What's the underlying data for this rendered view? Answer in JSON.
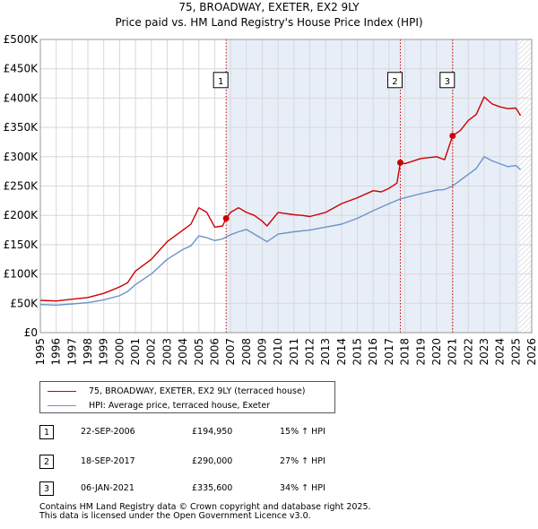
{
  "chart_data": {
    "type": "line",
    "title": "75, BROADWAY, EXETER, EX2 9LY",
    "subtitle": "Price paid vs. HM Land Registry's House Price Index (HPI)",
    "xlabel": "",
    "ylabel": "",
    "xlim": [
      1995,
      2026
    ],
    "ylim": [
      0,
      500000
    ],
    "x_ticks": [
      1995,
      1996,
      1997,
      1998,
      1999,
      2000,
      2001,
      2002,
      2003,
      2004,
      2005,
      2006,
      2007,
      2008,
      2009,
      2010,
      2011,
      2012,
      2013,
      2014,
      2015,
      2016,
      2017,
      2018,
      2019,
      2020,
      2021,
      2022,
      2023,
      2024,
      2025,
      2026
    ],
    "y_ticks": [
      {
        "value": 0,
        "label": "£0"
      },
      {
        "value": 50000,
        "label": "£50K"
      },
      {
        "value": 100000,
        "label": "£100K"
      },
      {
        "value": 150000,
        "label": "£150K"
      },
      {
        "value": 200000,
        "label": "£200K"
      },
      {
        "value": 250000,
        "label": "£250K"
      },
      {
        "value": 300000,
        "label": "£300K"
      },
      {
        "value": 350000,
        "label": "£350K"
      },
      {
        "value": 400000,
        "label": "£400K"
      },
      {
        "value": 450000,
        "label": "£450K"
      },
      {
        "value": 500000,
        "label": "£500K"
      }
    ],
    "grid": true,
    "series": [
      {
        "name": "75, BROADWAY, EXETER, EX2 9LY (terraced house)",
        "color": "#cc0000",
        "x": [
          1995.0,
          1996.0,
          1997.0,
          1998.0,
          1999.0,
          2000.0,
          2000.5,
          2001.0,
          2002.0,
          2003.0,
          2004.0,
          2004.5,
          2005.0,
          2005.5,
          2006.0,
          2006.5,
          2006.72,
          2007.0,
          2007.5,
          2008.0,
          2008.5,
          2009.0,
          2009.3,
          2010.0,
          2011.0,
          2011.5,
          2012.0,
          2013.0,
          2014.0,
          2015.0,
          2016.0,
          2016.5,
          2017.0,
          2017.5,
          2017.71,
          2018.0,
          2019.0,
          2020.0,
          2020.5,
          2021.01,
          2021.5,
          2022.0,
          2022.5,
          2023.0,
          2023.5,
          2024.0,
          2024.5,
          2025.0,
          2025.3
        ],
        "values": [
          55000,
          54000,
          57000,
          60000,
          67000,
          78000,
          85000,
          105000,
          125000,
          155000,
          175000,
          185000,
          213000,
          205000,
          180000,
          182000,
          194950,
          205000,
          213000,
          205000,
          200000,
          190000,
          182000,
          205000,
          201000,
          200000,
          198000,
          205000,
          220000,
          230000,
          242000,
          240000,
          246000,
          255000,
          290000,
          288000,
          297000,
          300000,
          295000,
          335600,
          345000,
          362000,
          372000,
          402000,
          390000,
          385000,
          382000,
          383000,
          370000
        ]
      },
      {
        "name": "HPI: Average price, terraced house, Exeter",
        "color": "#6d93c8",
        "x": [
          1995.0,
          1996.0,
          1997.0,
          1998.0,
          1999.0,
          2000.0,
          2000.5,
          2001.0,
          2002.0,
          2003.0,
          2004.0,
          2004.5,
          2005.0,
          2005.5,
          2006.0,
          2006.5,
          2007.0,
          2007.5,
          2008.0,
          2008.5,
          2009.0,
          2009.3,
          2010.0,
          2011.0,
          2012.0,
          2013.0,
          2014.0,
          2015.0,
          2016.0,
          2017.0,
          2017.71,
          2018.0,
          2019.0,
          2020.0,
          2020.5,
          2021.0,
          2021.5,
          2022.0,
          2022.5,
          2023.0,
          2023.5,
          2024.0,
          2024.5,
          2025.0,
          2025.3
        ],
        "values": [
          48000,
          47000,
          49000,
          51000,
          56000,
          63000,
          70000,
          82000,
          100000,
          125000,
          142000,
          148000,
          165000,
          162000,
          157000,
          160000,
          167000,
          172000,
          176000,
          168000,
          160000,
          155000,
          168000,
          172000,
          175000,
          180000,
          185000,
          195000,
          208000,
          220000,
          228000,
          230000,
          237000,
          243000,
          244000,
          250000,
          260000,
          270000,
          280000,
          300000,
          293000,
          288000,
          283000,
          285000,
          278000
        ]
      }
    ],
    "sales": [
      {
        "label": "1",
        "x": 2006.72,
        "value": 194950,
        "date": "22-SEP-2006",
        "price": "£194,950",
        "hpi": "15% ↑ HPI"
      },
      {
        "label": "2",
        "x": 2017.71,
        "value": 290000,
        "date": "18-SEP-2017",
        "price": "£290,000",
        "hpi": "27% ↑ HPI"
      },
      {
        "label": "3",
        "x": 2021.01,
        "value": 335600,
        "date": "06-JAN-2021",
        "price": "£335,600",
        "hpi": "34% ↑ HPI"
      }
    ],
    "marker_label_value": 430000,
    "future_shade_from": 2025.2,
    "legend_position": "below-left"
  },
  "legend": {
    "items": [
      {
        "label": "75, BROADWAY, EXETER, EX2 9LY (terraced house)",
        "color": "#cc0000"
      },
      {
        "label": "HPI: Average price, terraced house, Exeter",
        "color": "#6d93c8"
      }
    ]
  },
  "footer": {
    "line1": "Contains HM Land Registry data © Crown copyright and database right 2025.",
    "line2": "This data is licensed under the Open Government Licence v3.0."
  },
  "colors": {
    "grid": "#d8d8d8",
    "plot_bg": "#ffffff",
    "sale_band": "#e8eef8",
    "marker_line": "#cc0000",
    "hpi_line": "#6d93c8",
    "price_line": "#cc0000"
  }
}
